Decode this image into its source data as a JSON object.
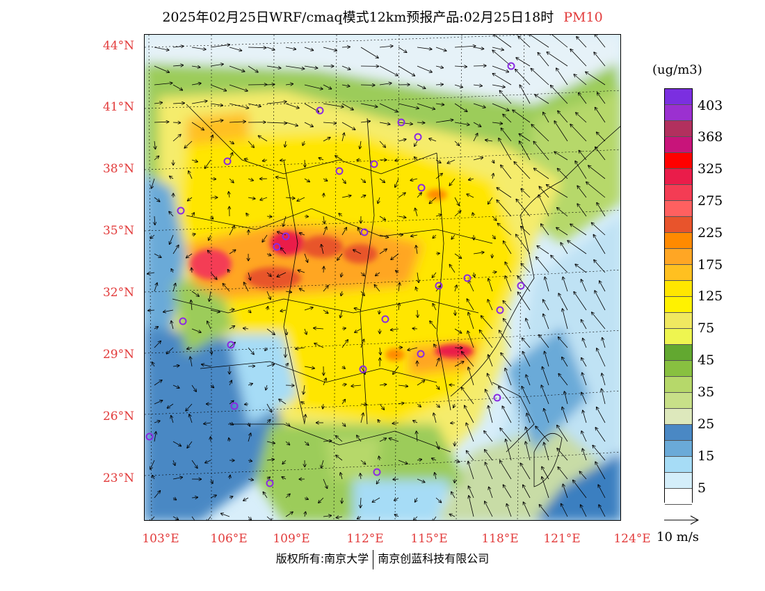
{
  "title": {
    "main": "2025年02月25日WRF/cmaq模式12km预报产品:02月25日18时",
    "pollutant": "PM10",
    "pollutant_color": "#e23b3b"
  },
  "map": {
    "lat_labels": [
      "44°N",
      "41°N",
      "38°N",
      "35°N",
      "32°N",
      "29°N",
      "26°N",
      "23°N"
    ],
    "lon_labels": [
      "103°E",
      "106°E",
      "109°E",
      "112°E",
      "115°E",
      "118°E",
      "121°E",
      "124°E"
    ],
    "label_color": "#e23b3b"
  },
  "legend": {
    "unit": "(ug/m3)",
    "colors": [
      "#7b2fe0",
      "#9b30d0",
      "#b2305e",
      "#c8147a",
      "#ff0000",
      "#ea1c4a",
      "#f43c54",
      "#ff6060",
      "#e8542c",
      "#ff8a00",
      "#ffa624",
      "#ffc020",
      "#ffe600",
      "#fff200",
      "#f0e860",
      "#eef550",
      "#62a830",
      "#88c040",
      "#b6d86a",
      "#c8e088",
      "#dde8bc",
      "#4a88c4",
      "#6aaad8",
      "#a6dcf6",
      "#d4eefa",
      "#ffffff"
    ],
    "labels": [
      "403",
      "368",
      "325",
      "275",
      "225",
      "175",
      "125",
      "75",
      "45",
      "35",
      "25",
      "15",
      "5"
    ]
  },
  "wind_reference": "10 m/s",
  "footer": {
    "left": "版权所有:南京大学",
    "right": "南京创蓝科技有限公司"
  }
}
